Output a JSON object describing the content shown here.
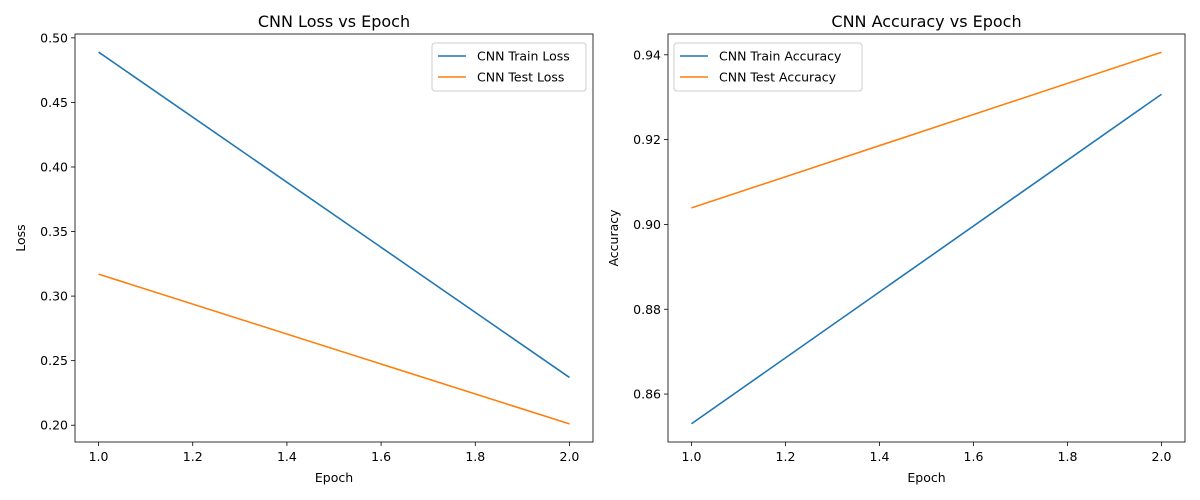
{
  "chart_data": [
    {
      "type": "line",
      "title": "CNN Loss vs Epoch",
      "xlabel": "Epoch",
      "ylabel": "Loss",
      "xlim": [
        0.95,
        2.05
      ],
      "ylim": [
        0.187,
        0.503
      ],
      "xticks": [
        1.0,
        1.2,
        1.4,
        1.6,
        1.8,
        2.0
      ],
      "xtick_labels": [
        "1.0",
        "1.2",
        "1.4",
        "1.6",
        "1.8",
        "2.0"
      ],
      "yticks": [
        0.2,
        0.25,
        0.3,
        0.35,
        0.4,
        0.45,
        0.5
      ],
      "ytick_labels": [
        "0.20",
        "0.25",
        "0.30",
        "0.35",
        "0.40",
        "0.45",
        "0.50"
      ],
      "grid": false,
      "legend_position": "top-right",
      "series": [
        {
          "name": "CNN Train Loss",
          "color": "#1f77b4",
          "x": [
            1,
            2
          ],
          "y": [
            0.489,
            0.237
          ]
        },
        {
          "name": "CNN Test Loss",
          "color": "#ff7f0e",
          "x": [
            1,
            2
          ],
          "y": [
            0.317,
            0.201
          ]
        }
      ]
    },
    {
      "type": "line",
      "title": "CNN Accuracy vs Epoch",
      "xlabel": "Epoch",
      "ylabel": "Accuracy",
      "xlim": [
        0.95,
        2.05
      ],
      "ylim": [
        0.8487,
        0.9449
      ],
      "xticks": [
        1.0,
        1.2,
        1.4,
        1.6,
        1.8,
        2.0
      ],
      "xtick_labels": [
        "1.0",
        "1.2",
        "1.4",
        "1.6",
        "1.8",
        "2.0"
      ],
      "yticks": [
        0.86,
        0.88,
        0.9,
        0.92,
        0.94
      ],
      "ytick_labels": [
        "0.86",
        "0.88",
        "0.90",
        "0.92",
        "0.94"
      ],
      "grid": false,
      "legend_position": "top-left",
      "series": [
        {
          "name": "CNN Train Accuracy",
          "color": "#1f77b4",
          "x": [
            1,
            2
          ],
          "y": [
            0.853,
            0.9307
          ]
        },
        {
          "name": "CNN Test Accuracy",
          "color": "#ff7f0e",
          "x": [
            1,
            2
          ],
          "y": [
            0.9039,
            0.9406
          ]
        }
      ]
    }
  ]
}
